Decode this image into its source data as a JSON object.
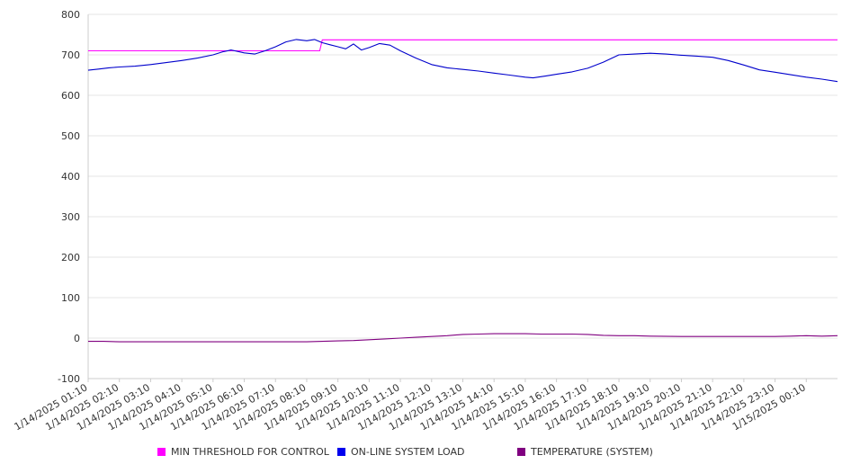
{
  "chart_data": {
    "type": "line",
    "title": "",
    "xlabel": "",
    "ylabel": "",
    "ylim": [
      -100,
      800
    ],
    "yticks": [
      -100,
      0,
      100,
      200,
      300,
      400,
      500,
      600,
      700,
      800
    ],
    "grid": true,
    "legend_position": "bottom",
    "x_start": "1/14/2025 01:10",
    "x_end": "1/15/2025 01:10",
    "x_tick_labels": [
      "1/14/2025 01:10",
      "1/14/2025 02:10",
      "1/14/2025 03:10",
      "1/14/2025 04:10",
      "1/14/2025 05:10",
      "1/14/2025 06:10",
      "1/14/2025 07:10",
      "1/14/2025 08:10",
      "1/14/2025 09:10",
      "1/14/2025 10:10",
      "1/14/2025 11:10",
      "1/14/2025 12:10",
      "1/14/2025 13:10",
      "1/14/2025 14:10",
      "1/14/2025 15:10",
      "1/14/2025 16:10",
      "1/14/2025 17:10",
      "1/14/2025 18:10",
      "1/14/2025 19:10",
      "1/14/2025 20:10",
      "1/14/2025 21:10",
      "1/14/2025 22:10",
      "1/14/2025 23:10",
      "1/15/2025 00:10"
    ],
    "series": [
      {
        "name": "MIN THRESHOLD FOR CONTROL",
        "color": "#ff00ff",
        "points": [
          [
            "1/14/2025 01:10",
            710
          ],
          [
            "1/14/2025 08:35",
            710
          ],
          [
            "1/14/2025 08:40",
            737
          ],
          [
            "1/15/2025 01:10",
            737
          ]
        ]
      },
      {
        "name": "ON-LINE SYSTEM LOAD",
        "color": "#0000cc",
        "points": [
          [
            "1/14/2025 01:10",
            662
          ],
          [
            "1/14/2025 01:30",
            665
          ],
          [
            "1/14/2025 01:50",
            668
          ],
          [
            "1/14/2025 02:10",
            670
          ],
          [
            "1/14/2025 02:40",
            672
          ],
          [
            "1/14/2025 03:10",
            676
          ],
          [
            "1/14/2025 03:40",
            681
          ],
          [
            "1/14/2025 04:10",
            686
          ],
          [
            "1/14/2025 04:40",
            692
          ],
          [
            "1/14/2025 05:10",
            700
          ],
          [
            "1/14/2025 05:30",
            708
          ],
          [
            "1/14/2025 05:45",
            712
          ],
          [
            "1/14/2025 06:10",
            705
          ],
          [
            "1/14/2025 06:30",
            702
          ],
          [
            "1/14/2025 06:50",
            710
          ],
          [
            "1/14/2025 07:10",
            720
          ],
          [
            "1/14/2025 07:30",
            732
          ],
          [
            "1/14/2025 07:50",
            738
          ],
          [
            "1/14/2025 08:10",
            735
          ],
          [
            "1/14/2025 08:25",
            738
          ],
          [
            "1/14/2025 08:40",
            730
          ],
          [
            "1/14/2025 08:55",
            725
          ],
          [
            "1/14/2025 09:10",
            720
          ],
          [
            "1/14/2025 09:25",
            715
          ],
          [
            "1/14/2025 09:40",
            727
          ],
          [
            "1/14/2025 09:55",
            712
          ],
          [
            "1/14/2025 10:10",
            718
          ],
          [
            "1/14/2025 10:30",
            728
          ],
          [
            "1/14/2025 10:50",
            724
          ],
          [
            "1/14/2025 11:10",
            710
          ],
          [
            "1/14/2025 11:40",
            692
          ],
          [
            "1/14/2025 12:10",
            676
          ],
          [
            "1/14/2025 12:40",
            668
          ],
          [
            "1/14/2025 13:10",
            664
          ],
          [
            "1/14/2025 13:40",
            660
          ],
          [
            "1/14/2025 14:10",
            655
          ],
          [
            "1/14/2025 14:40",
            650
          ],
          [
            "1/14/2025 15:10",
            645
          ],
          [
            "1/14/2025 15:25",
            643
          ],
          [
            "1/14/2025 15:50",
            648
          ],
          [
            "1/14/2025 16:10",
            652
          ],
          [
            "1/14/2025 16:40",
            658
          ],
          [
            "1/14/2025 17:10",
            667
          ],
          [
            "1/14/2025 17:40",
            682
          ],
          [
            "1/14/2025 18:10",
            700
          ],
          [
            "1/14/2025 18:40",
            702
          ],
          [
            "1/14/2025 19:10",
            704
          ],
          [
            "1/14/2025 19:40",
            702
          ],
          [
            "1/14/2025 20:10",
            699
          ],
          [
            "1/14/2025 20:40",
            697
          ],
          [
            "1/14/2025 21:10",
            694
          ],
          [
            "1/14/2025 21:40",
            686
          ],
          [
            "1/14/2025 22:10",
            675
          ],
          [
            "1/14/2025 22:40",
            663
          ],
          [
            "1/14/2025 23:10",
            657
          ],
          [
            "1/14/2025 23:40",
            651
          ],
          [
            "1/15/2025 00:10",
            645
          ],
          [
            "1/15/2025 00:40",
            640
          ],
          [
            "1/15/2025 01:10",
            634
          ]
        ]
      },
      {
        "name": "TEMPERATURE (SYSTEM)",
        "color": "#800080",
        "points": [
          [
            "1/14/2025 01:10",
            -8
          ],
          [
            "1/14/2025 01:40",
            -8
          ],
          [
            "1/14/2025 02:10",
            -9
          ],
          [
            "1/14/2025 04:10",
            -9
          ],
          [
            "1/14/2025 06:10",
            -9
          ],
          [
            "1/14/2025 08:10",
            -9
          ],
          [
            "1/14/2025 08:40",
            -8
          ],
          [
            "1/14/2025 09:10",
            -7
          ],
          [
            "1/14/2025 09:40",
            -6
          ],
          [
            "1/14/2025 10:10",
            -4
          ],
          [
            "1/14/2025 10:40",
            -2
          ],
          [
            "1/14/2025 11:10",
            0
          ],
          [
            "1/14/2025 11:40",
            2
          ],
          [
            "1/14/2025 12:10",
            4
          ],
          [
            "1/14/2025 12:40",
            6
          ],
          [
            "1/14/2025 13:10",
            9
          ],
          [
            "1/14/2025 13:40",
            10
          ],
          [
            "1/14/2025 14:10",
            11
          ],
          [
            "1/14/2025 14:40",
            11
          ],
          [
            "1/14/2025 15:10",
            11
          ],
          [
            "1/14/2025 15:40",
            10
          ],
          [
            "1/14/2025 16:10",
            10
          ],
          [
            "1/14/2025 16:40",
            10
          ],
          [
            "1/14/2025 17:10",
            9
          ],
          [
            "1/14/2025 17:40",
            7
          ],
          [
            "1/14/2025 18:10",
            6
          ],
          [
            "1/14/2025 18:40",
            6
          ],
          [
            "1/14/2025 19:10",
            5
          ],
          [
            "1/14/2025 20:10",
            4
          ],
          [
            "1/14/2025 21:10",
            4
          ],
          [
            "1/14/2025 22:10",
            4
          ],
          [
            "1/14/2025 23:10",
            4
          ],
          [
            "1/14/2025 23:40",
            5
          ],
          [
            "1/15/2025 00:10",
            6
          ],
          [
            "1/15/2025 00:40",
            5
          ],
          [
            "1/15/2025 01:10",
            6
          ]
        ]
      }
    ]
  },
  "legend": {
    "items": [
      {
        "label": "MIN THRESHOLD FOR CONTROL",
        "color": "#ff00ff"
      },
      {
        "label": "ON-LINE SYSTEM LOAD",
        "color": "#0000ee"
      },
      {
        "label": "TEMPERATURE (SYSTEM)",
        "color": "#800080"
      }
    ]
  }
}
